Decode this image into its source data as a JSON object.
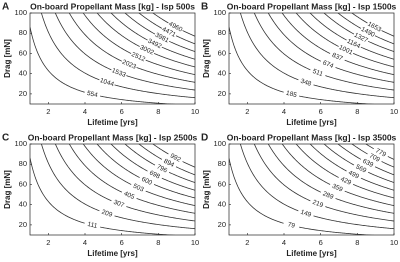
{
  "chart_data": [
    {
      "type": "contour",
      "panel_label": "A",
      "title": "On-board Propellant Mass [kg] - Isp 500s",
      "x_label": "Lifetime [yrs]",
      "y_label": "Drag [mN]",
      "levels": [
        554,
        1044,
        1533,
        2023,
        2512,
        3002,
        3492,
        3981,
        4471,
        4960
      ],
      "color": "#333333",
      "xlim": [
        1,
        10
      ],
      "xticks": [
        2,
        4,
        6,
        8,
        10
      ],
      "ylim": [
        10,
        100
      ],
      "yticks": [
        20,
        40,
        60,
        80,
        100
      ]
    },
    {
      "type": "contour",
      "panel_label": "B",
      "title": "On-board Propellant Mass [kg] - Isp 1500s",
      "x_label": "Lifetime [yrs]",
      "y_label": "Drag [mN]",
      "levels": [
        185,
        348,
        511,
        674,
        837,
        1001,
        1164,
        1327,
        1490,
        1653
      ],
      "color": "#333333",
      "xlim": [
        1,
        10
      ],
      "xticks": [
        2,
        4,
        6,
        8,
        10
      ],
      "ylim": [
        10,
        100
      ],
      "yticks": [
        20,
        40,
        60,
        80,
        100
      ]
    },
    {
      "type": "contour",
      "panel_label": "C",
      "title": "On-board Propellant Mass [kg] - Isp 2500s",
      "x_label": "Lifetime [yrs]",
      "y_label": "Drag [mN]",
      "levels": [
        111,
        209,
        307,
        405,
        503,
        600,
        698,
        796,
        894,
        992
      ],
      "color": "#333333",
      "xlim": [
        1,
        10
      ],
      "xticks": [
        2,
        4,
        6,
        8,
        10
      ],
      "ylim": [
        10,
        100
      ],
      "yticks": [
        20,
        40,
        60,
        80,
        100
      ]
    },
    {
      "type": "contour",
      "panel_label": "D",
      "title": "On-board Propellant Mass [kg] - Isp 3500s",
      "x_label": "Lifetime [yrs]",
      "y_label": "Drag [mN]",
      "levels": [
        79,
        149,
        219,
        289,
        359,
        429,
        499,
        569,
        639,
        709,
        779
      ],
      "color": "#333333",
      "xlim": [
        1,
        10
      ],
      "xticks": [
        2,
        4,
        6,
        8,
        10
      ],
      "ylim": [
        10,
        100
      ],
      "yticks": [
        20,
        40,
        60,
        80,
        100
      ]
    }
  ]
}
